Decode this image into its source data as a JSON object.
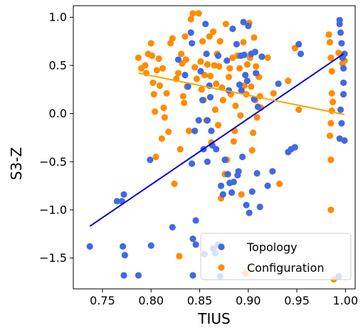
{
  "chart_data": {
    "type": "scatter",
    "xlabel": "TIUS",
    "ylabel": "S3-Z",
    "xlim": [
      0.72,
      1.01
    ],
    "ylim": [
      -1.82,
      1.12
    ],
    "x_ticks": [
      0.75,
      0.8,
      0.85,
      0.9,
      0.95,
      1.0
    ],
    "x_tick_labels": [
      "0.75",
      "0.80",
      "0.85",
      "0.90",
      "0.95",
      "1.00"
    ],
    "y_ticks": [
      -1.5,
      -1.0,
      -0.5,
      0.0,
      0.5,
      1.0
    ],
    "y_tick_labels": [
      "−1.5",
      "−1.0",
      "−0.5",
      "0.0",
      "0.5",
      "1.0"
    ],
    "grid": false,
    "legend_position": "bottom-right",
    "series": [
      {
        "name": "Topology",
        "color": "#4169e1",
        "fit_color": "#0000dd",
        "fit_line": [
          [
            0.737,
            -1.17
          ],
          [
            0.998,
            0.62
          ]
        ],
        "points": [
          [
            0.737,
            -1.38
          ],
          [
            0.765,
            -0.91
          ],
          [
            0.77,
            -0.91
          ],
          [
            0.772,
            -0.84
          ],
          [
            0.771,
            -1.38
          ],
          [
            0.773,
            -1.47
          ],
          [
            0.772,
            -1.68
          ],
          [
            0.787,
            -1.68
          ],
          [
            0.799,
            -0.48
          ],
          [
            0.8,
            -1.37
          ],
          [
            0.822,
            -1.18
          ],
          [
            0.828,
            0.56
          ],
          [
            0.835,
            0.4
          ],
          [
            0.838,
            0.28
          ],
          [
            0.841,
            0.84
          ],
          [
            0.842,
            0.73
          ],
          [
            0.843,
            -1.3
          ],
          [
            0.842,
            -0.52
          ],
          [
            0.843,
            -1.68
          ],
          [
            0.845,
            -0.18
          ],
          [
            0.846,
            -1.11
          ],
          [
            0.846,
            -1.36
          ],
          [
            0.849,
            -0.07
          ],
          [
            0.851,
            0.44
          ],
          [
            0.853,
            0.14
          ],
          [
            0.854,
            -0.37
          ],
          [
            0.855,
            -1.46
          ],
          [
            0.856,
            0.93
          ],
          [
            0.857,
            0.62
          ],
          [
            0.858,
            -0.07
          ],
          [
            0.858,
            -0.5
          ],
          [
            0.86,
            0.29
          ],
          [
            0.861,
            0.17
          ],
          [
            0.862,
            -0.18
          ],
          [
            0.863,
            -0.33
          ],
          [
            0.864,
            -1.4
          ],
          [
            0.866,
            -1.45
          ],
          [
            0.867,
            -0.37
          ],
          [
            0.869,
            0.6
          ],
          [
            0.869,
            -1.36
          ],
          [
            0.871,
            -1.69
          ],
          [
            0.872,
            -0.75
          ],
          [
            0.874,
            -0.84
          ],
          [
            0.876,
            -0.48
          ],
          [
            0.878,
            0.55
          ],
          [
            0.879,
            -0.63
          ],
          [
            0.88,
            0.24
          ],
          [
            0.881,
            -0.72
          ],
          [
            0.883,
            -0.82
          ],
          [
            0.884,
            0.88
          ],
          [
            0.885,
            -0.71
          ],
          [
            0.888,
            0.72
          ],
          [
            0.889,
            -0.64
          ],
          [
            0.89,
            -0.6
          ],
          [
            0.891,
            0.3
          ],
          [
            0.892,
            0.6
          ],
          [
            0.893,
            0.24
          ],
          [
            0.894,
            -0.45
          ],
          [
            0.895,
            0.95
          ],
          [
            0.896,
            0.61
          ],
          [
            0.897,
            0.4
          ],
          [
            0.898,
            -0.95
          ],
          [
            0.899,
            0.34
          ],
          [
            0.9,
            0.91
          ],
          [
            0.901,
            -1.03
          ],
          [
            0.903,
            0.62
          ],
          [
            0.904,
            -0.81
          ],
          [
            0.906,
            0.15
          ],
          [
            0.907,
            0.64
          ],
          [
            0.908,
            0.42
          ],
          [
            0.909,
            -0.62
          ],
          [
            0.91,
            0.07
          ],
          [
            0.912,
            -0.97
          ],
          [
            0.914,
            0.59
          ],
          [
            0.92,
            -0.75
          ],
          [
            0.925,
            -0.6
          ],
          [
            0.931,
            0.31
          ],
          [
            0.941,
            -0.4
          ],
          [
            0.944,
            -0.37
          ],
          [
            0.948,
            -0.35
          ],
          [
            0.952,
            0.72
          ],
          [
            0.954,
            0.62
          ],
          [
            0.994,
            0.97
          ],
          [
            0.994,
            0.93
          ],
          [
            0.995,
            0.84
          ],
          [
            0.996,
            0.73
          ],
          [
            0.997,
            0.58
          ],
          [
            0.998,
            0.47
          ],
          [
            0.998,
            0.32
          ],
          [
            0.998,
            0.2
          ],
          [
            0.995,
            0.04
          ],
          [
            0.996,
            -0.1
          ],
          [
            0.994,
            -0.26
          ],
          [
            0.999,
            -0.28
          ],
          [
            0.993,
            -1.69
          ],
          [
            0.999,
            0.62
          ]
        ]
      },
      {
        "name": "Configuration",
        "color": "#ff8c00",
        "fit_color": "#ffa500",
        "fit_line": [
          [
            0.787,
            0.42
          ],
          [
            0.999,
            -0.01
          ]
        ],
        "points": [
          [
            0.787,
            0.58
          ],
          [
            0.79,
            0.47
          ],
          [
            0.794,
            0.5
          ],
          [
            0.795,
            0.42
          ],
          [
            0.797,
            0.62
          ],
          [
            0.8,
            0.73
          ],
          [
            0.801,
            0.6
          ],
          [
            0.802,
            0.32
          ],
          [
            0.803,
            0.2
          ],
          [
            0.804,
            0.02
          ],
          [
            0.805,
            -0.45
          ],
          [
            0.806,
            0.45
          ],
          [
            0.808,
            0.57
          ],
          [
            0.809,
            0.29
          ],
          [
            0.811,
            -0.26
          ],
          [
            0.812,
            0.47
          ],
          [
            0.813,
            0.06
          ],
          [
            0.814,
            -0.04
          ],
          [
            0.816,
            0.21
          ],
          [
            0.818,
            -0.19
          ],
          [
            0.82,
            0.73
          ],
          [
            0.822,
            0.78
          ],
          [
            0.824,
            -0.73
          ],
          [
            0.826,
            0.36
          ],
          [
            0.828,
            0.42
          ],
          [
            0.829,
            -1.48
          ],
          [
            0.83,
            -0.37
          ],
          [
            0.831,
            0.62
          ],
          [
            0.832,
            0.52
          ],
          [
            0.833,
            0.18
          ],
          [
            0.834,
            0.11
          ],
          [
            0.835,
            0.8
          ],
          [
            0.836,
            0.56
          ],
          [
            0.837,
            0.28
          ],
          [
            0.838,
            0.29
          ],
          [
            0.839,
            -0.18
          ],
          [
            0.841,
            0.98
          ],
          [
            0.843,
            1.04
          ],
          [
            0.845,
            0.48
          ],
          [
            0.847,
            0.36
          ],
          [
            0.849,
            1.04
          ],
          [
            0.851,
            0.54
          ],
          [
            0.852,
            0.25
          ],
          [
            0.853,
            0.75
          ],
          [
            0.854,
            0.14
          ],
          [
            0.855,
            0.4
          ],
          [
            0.857,
            -0.07
          ],
          [
            0.858,
            0.51
          ],
          [
            0.86,
            0.8
          ],
          [
            0.861,
            0.39
          ],
          [
            0.862,
            -0.3
          ],
          [
            0.864,
            0.85
          ],
          [
            0.865,
            0.5
          ],
          [
            0.866,
            0.04
          ],
          [
            0.867,
            0.31
          ],
          [
            0.868,
            0.62
          ],
          [
            0.869,
            -0.12
          ],
          [
            0.87,
            0.49
          ],
          [
            0.871,
            0.75
          ],
          [
            0.872,
            -0.88
          ],
          [
            0.873,
            0.27
          ],
          [
            0.874,
            0.14
          ],
          [
            0.876,
            -0.63
          ],
          [
            0.877,
            0.93
          ],
          [
            0.878,
            -0.48
          ],
          [
            0.88,
            0.38
          ],
          [
            0.881,
            0.47
          ],
          [
            0.882,
            0.2
          ],
          [
            0.884,
            0.58
          ],
          [
            0.885,
            -0.29
          ],
          [
            0.886,
            -0.18
          ],
          [
            0.887,
            0.08
          ],
          [
            0.889,
            0.6
          ],
          [
            0.891,
            0.47
          ],
          [
            0.892,
            -0.02
          ],
          [
            0.893,
            -0.84
          ],
          [
            0.895,
            0.74
          ],
          [
            0.896,
            0.29
          ],
          [
            0.897,
            -1.66
          ],
          [
            0.898,
            0.2
          ],
          [
            0.899,
            0.51
          ],
          [
            0.901,
            0.94
          ],
          [
            0.902,
            0.58
          ],
          [
            0.903,
            0.28
          ],
          [
            0.904,
            -0.38
          ],
          [
            0.905,
            -0.2
          ],
          [
            0.906,
            0.79
          ],
          [
            0.907,
            0.14
          ],
          [
            0.908,
            0.49
          ],
          [
            0.909,
            -0.04
          ],
          [
            0.911,
            0.38
          ],
          [
            0.912,
            0.18
          ],
          [
            0.913,
            0.06
          ],
          [
            0.92,
            0.58
          ],
          [
            0.926,
            0.21
          ],
          [
            0.932,
            -0.73
          ],
          [
            0.941,
            0.34
          ],
          [
            0.948,
            0.68
          ],
          [
            0.952,
            0.04
          ],
          [
            0.983,
            0.82
          ],
          [
            0.984,
            0.74
          ],
          [
            0.985,
            0.58
          ],
          [
            0.986,
            0.44
          ],
          [
            0.986,
            0.21
          ],
          [
            0.986,
            0.03
          ],
          [
            0.985,
            -0.1
          ],
          [
            0.984,
            -0.23
          ],
          [
            0.985,
            -0.48
          ],
          [
            0.985,
            -1.0
          ],
          [
            0.987,
            0.12
          ],
          [
            0.988,
            -1.72
          ],
          [
            0.993,
            0.63
          ],
          [
            0.997,
            0.52
          ],
          [
            0.999,
            0.55
          ]
        ]
      }
    ]
  }
}
